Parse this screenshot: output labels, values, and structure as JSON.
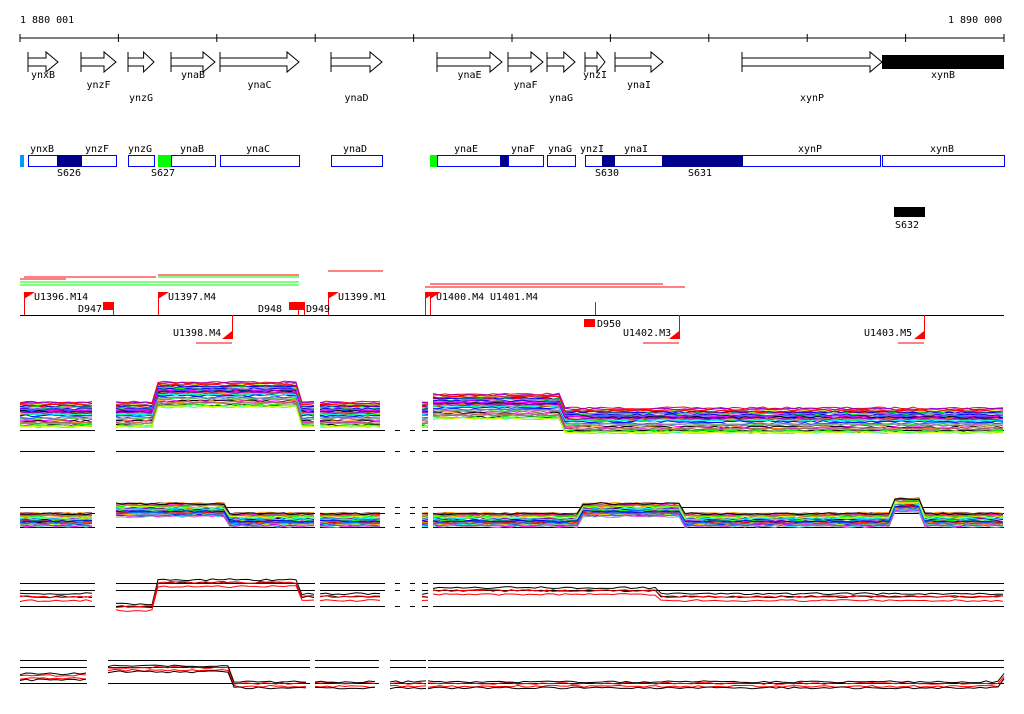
{
  "ruler": {
    "start_label": "1 880 001",
    "end_label": "1 890 000"
  },
  "genes": [
    {
      "name": "ynxB",
      "strand": "+",
      "filled": false
    },
    {
      "name": "ynzF",
      "strand": "+",
      "filled": false
    },
    {
      "name": "ynzG",
      "strand": "+",
      "filled": false
    },
    {
      "name": "ynaB",
      "strand": "+",
      "filled": false
    },
    {
      "name": "ynaC",
      "strand": "+",
      "filled": false
    },
    {
      "name": "ynaD",
      "strand": "+",
      "filled": false
    },
    {
      "name": "ynaE",
      "strand": "+",
      "filled": false
    },
    {
      "name": "ynaF",
      "strand": "+",
      "filled": false
    },
    {
      "name": "ynaG",
      "strand": "+",
      "filled": false
    },
    {
      "name": "ynzI",
      "strand": "+",
      "filled": false
    },
    {
      "name": "ynaI",
      "strand": "+",
      "filled": false
    },
    {
      "name": "xynP",
      "strand": "+",
      "filled": false
    },
    {
      "name": "xynB",
      "strand": "+",
      "filled": true
    }
  ],
  "segments": {
    "gene_labels": [
      "ynxB",
      "ynzF",
      "ynzG",
      "ynaB",
      "ynaC",
      "ynaD",
      "ynaE",
      "ynaF",
      "ynaG",
      "ynzI",
      "ynaI",
      "xynP",
      "xynB"
    ],
    "segment_labels": [
      "S626",
      "S627",
      "S630",
      "S631",
      "S632"
    ]
  },
  "features": {
    "upshifts": [
      "U1396.M14",
      "U1397.M4",
      "U1398.M4",
      "U1399.M1",
      "U1400.M4",
      "U1401.M4",
      "U1402.M3",
      "U1403.M5"
    ],
    "downshifts": [
      "D947",
      "D948",
      "D949",
      "D950"
    ]
  },
  "colors": {
    "segment_border": "#0000ff",
    "segment_dark": "#00008b",
    "segment_green": "#00ff00",
    "segment_lightblue": "#0099ff",
    "feature_red": "#ff0000"
  }
}
